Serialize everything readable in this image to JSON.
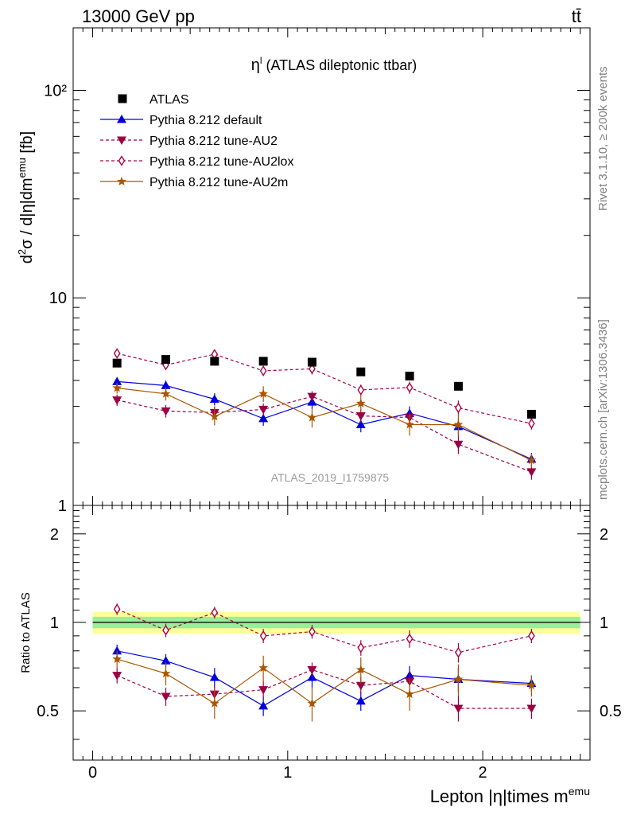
{
  "header": {
    "left": "13000 GeV pp",
    "right": "tt̄"
  },
  "side_labels": {
    "rivet": "Rivet 3.1.10, ≥ 200k events",
    "mcplots": "mcplots.cern.ch [arXiv:1306.3436]"
  },
  "colors": {
    "atlas": "#000000",
    "default": "#0000dd",
    "au2": "#990044",
    "au2lox": "#aa0044",
    "au2m": "#aa5500"
  },
  "chart_data": {
    "type": "scatter",
    "title": "η^l (ATLAS dileptonic ttbar)",
    "title_main": "η",
    "title_sup": "l",
    "title_rest": " (ATLAS dileptonic ttbar)",
    "ylabel": "d²σ / d|η|dm^emu [fb]",
    "xlabel": "Lepton |η|times m^emu",
    "watermark": "ATLAS_2019_I1759875",
    "xlim": [
      -0.1,
      2.55
    ],
    "ylim": [
      1,
      200
    ],
    "yscale": "log",
    "ratio_ylabel": "Ratio to ATLAS",
    "ratio_ylim": [
      0.34,
      2.5
    ],
    "x_ticks": [
      "0",
      "1",
      "2"
    ],
    "y_ticks_main": [
      "1",
      "10",
      "10²"
    ],
    "y_ticks_ratio": [
      "0.5",
      "1",
      "2"
    ],
    "bins": [
      0.0,
      0.25,
      0.5,
      0.75,
      1.0,
      1.25,
      1.5,
      1.75,
      2.0,
      2.5
    ],
    "x": [
      0.125,
      0.375,
      0.625,
      0.875,
      1.125,
      1.375,
      1.625,
      1.875,
      2.25
    ],
    "data": {
      "name": "ATLAS",
      "values": [
        4.85,
        5.05,
        4.95,
        4.95,
        4.9,
        4.4,
        4.2,
        3.75,
        2.75
      ]
    },
    "ratio_band": {
      "inner": 0.045,
      "outer": 0.085
    },
    "series": [
      {
        "name": "Pythia 8.212 default",
        "marker": "triangle-up",
        "dash": "solid",
        "color": "#0000dd",
        "values": [
          3.95,
          3.78,
          3.25,
          2.62,
          3.15,
          2.45,
          2.78,
          2.4,
          1.67
        ],
        "errors": [
          0.18,
          0.22,
          0.22,
          0.2,
          0.24,
          0.2,
          0.22,
          0.22,
          0.12
        ],
        "ratio": [
          0.8,
          0.74,
          0.65,
          0.52,
          0.65,
          0.54,
          0.66,
          0.64,
          0.62
        ],
        "ratio_err": [
          0.04,
          0.04,
          0.05,
          0.04,
          0.05,
          0.04,
          0.05,
          0.06,
          0.04
        ]
      },
      {
        "name": "Pythia 8.212 tune-AU2",
        "marker": "triangle-down",
        "dash": "dashed",
        "color": "#990044",
        "values": [
          3.22,
          2.85,
          2.8,
          2.9,
          3.35,
          2.7,
          2.65,
          1.97,
          1.45
        ],
        "errors": [
          0.2,
          0.2,
          0.2,
          0.2,
          0.2,
          0.2,
          0.2,
          0.2,
          0.12
        ],
        "ratio": [
          0.66,
          0.56,
          0.57,
          0.59,
          0.69,
          0.61,
          0.63,
          0.51,
          0.51
        ],
        "ratio_err": [
          0.04,
          0.04,
          0.04,
          0.04,
          0.04,
          0.04,
          0.05,
          0.05,
          0.04
        ]
      },
      {
        "name": "Pythia 8.212 tune-AU2lox",
        "marker": "diamond-open",
        "dash": "dashed",
        "color": "#aa0044",
        "values": [
          5.4,
          4.75,
          5.35,
          4.45,
          4.55,
          3.6,
          3.7,
          2.95,
          2.48
        ],
        "errors": [
          0.25,
          0.25,
          0.25,
          0.25,
          0.28,
          0.22,
          0.25,
          0.25,
          0.16
        ],
        "ratio": [
          1.11,
          0.94,
          1.08,
          0.9,
          0.93,
          0.82,
          0.88,
          0.79,
          0.9
        ],
        "ratio_err": [
          0.05,
          0.05,
          0.05,
          0.05,
          0.05,
          0.05,
          0.06,
          0.06,
          0.05
        ]
      },
      {
        "name": "Pythia 8.212 tune-AU2m",
        "marker": "star",
        "dash": "solid",
        "color": "#aa5500",
        "values": [
          3.68,
          3.45,
          2.68,
          3.45,
          2.65,
          3.1,
          2.45,
          2.45,
          1.65
        ],
        "errors": [
          0.22,
          0.25,
          0.25,
          0.3,
          0.28,
          0.28,
          0.28,
          0.3,
          0.13
        ],
        "ratio": [
          0.75,
          0.67,
          0.53,
          0.7,
          0.53,
          0.69,
          0.57,
          0.64,
          0.61
        ],
        "ratio_err": [
          0.05,
          0.06,
          0.06,
          0.07,
          0.07,
          0.07,
          0.07,
          0.08,
          0.05
        ]
      }
    ]
  }
}
